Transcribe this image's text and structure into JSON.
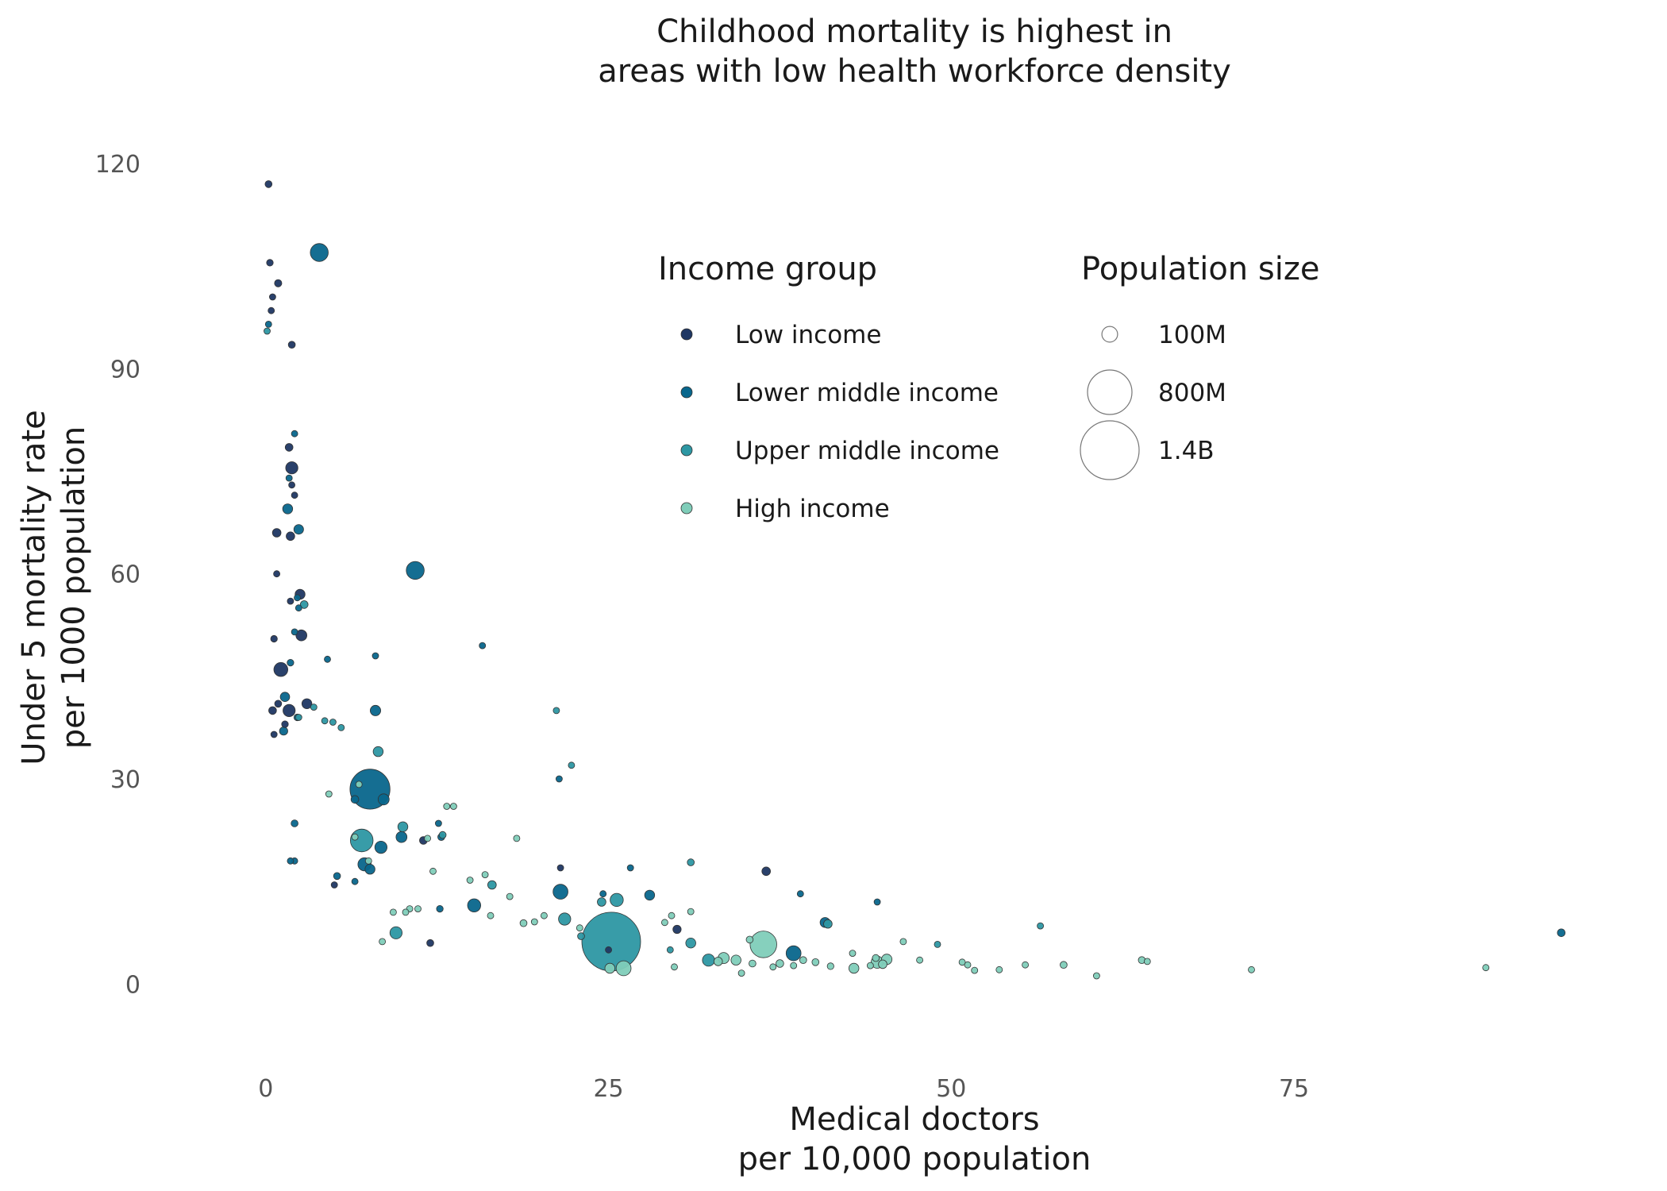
{
  "chart_data": {
    "type": "scatter",
    "title_lines": [
      "Childhood mortality is highest in",
      "areas with low health workforce density"
    ],
    "xlabel_lines": [
      "Medical doctors",
      "per 10,000 population"
    ],
    "ylabel_lines": [
      "Under 5 mortality rate",
      "per 1000 population"
    ],
    "xlim": [
      -3,
      97
    ],
    "ylim": [
      -6,
      125
    ],
    "xticks": [
      0,
      25,
      50,
      75
    ],
    "yticks": [
      0,
      30,
      60,
      90,
      120
    ],
    "grid": false,
    "legend": {
      "color_title": "Income group",
      "size_title": "Population size",
      "placement": "top-center"
    },
    "series": [
      {
        "name": "Low income",
        "color": "#1f3763",
        "points": [
          [
            0.2,
            117,
            20
          ],
          [
            0.3,
            105.5,
            18
          ],
          [
            0.9,
            102.5,
            22
          ],
          [
            0.5,
            100.5,
            15
          ],
          [
            0.4,
            98.5,
            16
          ],
          [
            1.9,
            93.5,
            20
          ],
          [
            1.7,
            78.5,
            25
          ],
          [
            1.9,
            75.5,
            60
          ],
          [
            1.9,
            73,
            15
          ],
          [
            2.1,
            71.5,
            8
          ],
          [
            0.8,
            66,
            30
          ],
          [
            1.8,
            65.5,
            30
          ],
          [
            0.8,
            60,
            12
          ],
          [
            2.5,
            57,
            40
          ],
          [
            1.8,
            56,
            5
          ],
          [
            0.6,
            50.5,
            18
          ],
          [
            2.6,
            51,
            48
          ],
          [
            1.1,
            46,
            80
          ],
          [
            0.9,
            41,
            20
          ],
          [
            1.7,
            40,
            60
          ],
          [
            0.5,
            40,
            25
          ],
          [
            3.0,
            41,
            40
          ],
          [
            1.4,
            38,
            18
          ],
          [
            0.6,
            36.5,
            10
          ],
          [
            11.5,
            21,
            25
          ],
          [
            5,
            14.5,
            8
          ],
          [
            36.5,
            16.5,
            30
          ],
          [
            21.5,
            17,
            10
          ],
          [
            30,
            8,
            28
          ],
          [
            12,
            6,
            20
          ],
          [
            25,
            5,
            8
          ]
        ]
      },
      {
        "name": "Lower middle income",
        "color": "#08668c",
        "points": [
          [
            3.9,
            107,
            130
          ],
          [
            10.9,
            60.5,
            130
          ],
          [
            7.6,
            28.5,
            650
          ],
          [
            6.5,
            27,
            25
          ],
          [
            8.6,
            27,
            50
          ],
          [
            8,
            40,
            45
          ],
          [
            1.4,
            42,
            35
          ],
          [
            1.8,
            47,
            18
          ],
          [
            2.3,
            56.5,
            14
          ],
          [
            2.4,
            55,
            15
          ],
          [
            2.1,
            51.5,
            8
          ],
          [
            2.3,
            39,
            18
          ],
          [
            1.3,
            37,
            28
          ],
          [
            1.6,
            69.5,
            40
          ],
          [
            2.1,
            80.5,
            15
          ],
          [
            1.7,
            74,
            10
          ],
          [
            0.2,
            96.5,
            12
          ],
          [
            2.4,
            66.5,
            38
          ],
          [
            7.2,
            17.5,
            70
          ],
          [
            7.6,
            16.8,
            40
          ],
          [
            8.4,
            20,
            60
          ],
          [
            9.9,
            21.5,
            48
          ],
          [
            15.2,
            11.5,
            70
          ],
          [
            21.5,
            13.5,
            90
          ],
          [
            24.6,
            13.2,
            15
          ],
          [
            21.4,
            30,
            15
          ],
          [
            28,
            13,
            40
          ],
          [
            38.5,
            4.5,
            90
          ],
          [
            40.8,
            9,
            40
          ],
          [
            39,
            13.2,
            10
          ],
          [
            26.6,
            17,
            10
          ],
          [
            5.2,
            15.8,
            20
          ],
          [
            2.1,
            23.5,
            20
          ],
          [
            12.6,
            23.5,
            15
          ],
          [
            12.7,
            11,
            18
          ],
          [
            6.5,
            15,
            15
          ],
          [
            15.8,
            49.5,
            5
          ],
          [
            8,
            48,
            5
          ],
          [
            12.8,
            21.5,
            20
          ],
          [
            2.1,
            18,
            5
          ],
          [
            44.6,
            12,
            5
          ],
          [
            94.5,
            7.5,
            25
          ],
          [
            4.5,
            47.5,
            5
          ],
          [
            1.8,
            18,
            5
          ]
        ]
      },
      {
        "name": "Upper middle income",
        "color": "#2d97a3",
        "points": [
          [
            25.2,
            6.2,
            1400
          ],
          [
            7,
            21,
            210
          ],
          [
            8.2,
            34,
            40
          ],
          [
            10,
            23,
            40
          ],
          [
            9.5,
            7.5,
            60
          ],
          [
            21.8,
            9.5,
            60
          ],
          [
            25.6,
            12.3,
            70
          ],
          [
            24.5,
            12,
            30
          ],
          [
            22.3,
            32,
            15
          ],
          [
            21.2,
            40,
            10
          ],
          [
            16.5,
            14.5,
            30
          ],
          [
            31,
            6,
            40
          ],
          [
            32.3,
            3.5,
            60
          ],
          [
            31,
            17.8,
            20
          ],
          [
            41,
            8.8,
            30
          ],
          [
            2.8,
            55.5,
            25
          ],
          [
            0.1,
            95.5,
            15
          ],
          [
            12.9,
            21.8,
            20
          ],
          [
            3.5,
            40.5,
            10
          ],
          [
            2.4,
            39,
            10
          ],
          [
            4.3,
            38.5,
            10
          ],
          [
            29.5,
            5,
            10
          ],
          [
            23,
            7,
            20
          ],
          [
            49,
            5.8,
            12
          ],
          [
            56.5,
            8.5,
            10
          ],
          [
            4.9,
            38.3,
            8
          ],
          [
            5.5,
            37.5,
            10
          ]
        ]
      },
      {
        "name": "High income",
        "color": "#7fcdb9",
        "points": [
          [
            36.3,
            5.8,
            290
          ],
          [
            26.1,
            2.3,
            90
          ],
          [
            25.1,
            2.3,
            40
          ],
          [
            33.4,
            3.8,
            50
          ],
          [
            34.3,
            3.5,
            40
          ],
          [
            35.3,
            6.5,
            20
          ],
          [
            37.5,
            3,
            25
          ],
          [
            39.2,
            3.5,
            20
          ],
          [
            40.1,
            3.2,
            20
          ],
          [
            41.2,
            2.6,
            18
          ],
          [
            42.9,
            2.3,
            40
          ],
          [
            44.6,
            3.2,
            60
          ],
          [
            45.3,
            3.6,
            45
          ],
          [
            51.7,
            2,
            15
          ],
          [
            55.4,
            2.8,
            15
          ],
          [
            58.2,
            2.8,
            20
          ],
          [
            63.9,
            3.5,
            20
          ],
          [
            64.3,
            3.3,
            15
          ],
          [
            71.9,
            2.1,
            15
          ],
          [
            60.6,
            1.2,
            8
          ],
          [
            89,
            2.4,
            6
          ],
          [
            46.5,
            6.2,
            10
          ],
          [
            16,
            16,
            15
          ],
          [
            17.8,
            12.8,
            10
          ],
          [
            20.3,
            10,
            12
          ],
          [
            22.9,
            8.2,
            12
          ],
          [
            31,
            10.6,
            10
          ],
          [
            33,
            3.3,
            30
          ],
          [
            35.5,
            3,
            20
          ],
          [
            38.5,
            2.7,
            15
          ],
          [
            44.5,
            3.8,
            20
          ],
          [
            45,
            2.9,
            30
          ],
          [
            51.2,
            2.8,
            10
          ],
          [
            18.8,
            8.9,
            20
          ],
          [
            19.6,
            9.1,
            15
          ],
          [
            14.9,
            15.2,
            10
          ],
          [
            13.7,
            26,
            15
          ],
          [
            13.2,
            26,
            12
          ],
          [
            11.8,
            21.3,
            10
          ],
          [
            12.2,
            16.5,
            8
          ],
          [
            10.5,
            11,
            8
          ],
          [
            11.1,
            11,
            8
          ],
          [
            10.2,
            10.5,
            8
          ],
          [
            9.3,
            10.5,
            8
          ],
          [
            8.5,
            6.2,
            10
          ],
          [
            7.5,
            18,
            8
          ],
          [
            6.5,
            21.5,
            8
          ],
          [
            6.8,
            29.2,
            8
          ],
          [
            4.6,
            27.8,
            8
          ],
          [
            16.4,
            10,
            8
          ],
          [
            18.3,
            21.3,
            8
          ],
          [
            29.1,
            9,
            8
          ],
          [
            29.6,
            10,
            8
          ],
          [
            37,
            2.5,
            8
          ],
          [
            44.1,
            2.7,
            10
          ],
          [
            47.7,
            3.5,
            10
          ],
          [
            50.8,
            3.2,
            10
          ],
          [
            53.5,
            2.1,
            8
          ],
          [
            34.7,
            1.6,
            8
          ],
          [
            42.8,
            4.5,
            8
          ],
          [
            29.8,
            2.5,
            8
          ]
        ]
      }
    ],
    "size_legend": [
      {
        "label": "100M",
        "value": 100
      },
      {
        "label": "800M",
        "value": 800
      },
      {
        "label": "1.4B",
        "value": 1400
      }
    ],
    "point_stroke": "#333333"
  }
}
